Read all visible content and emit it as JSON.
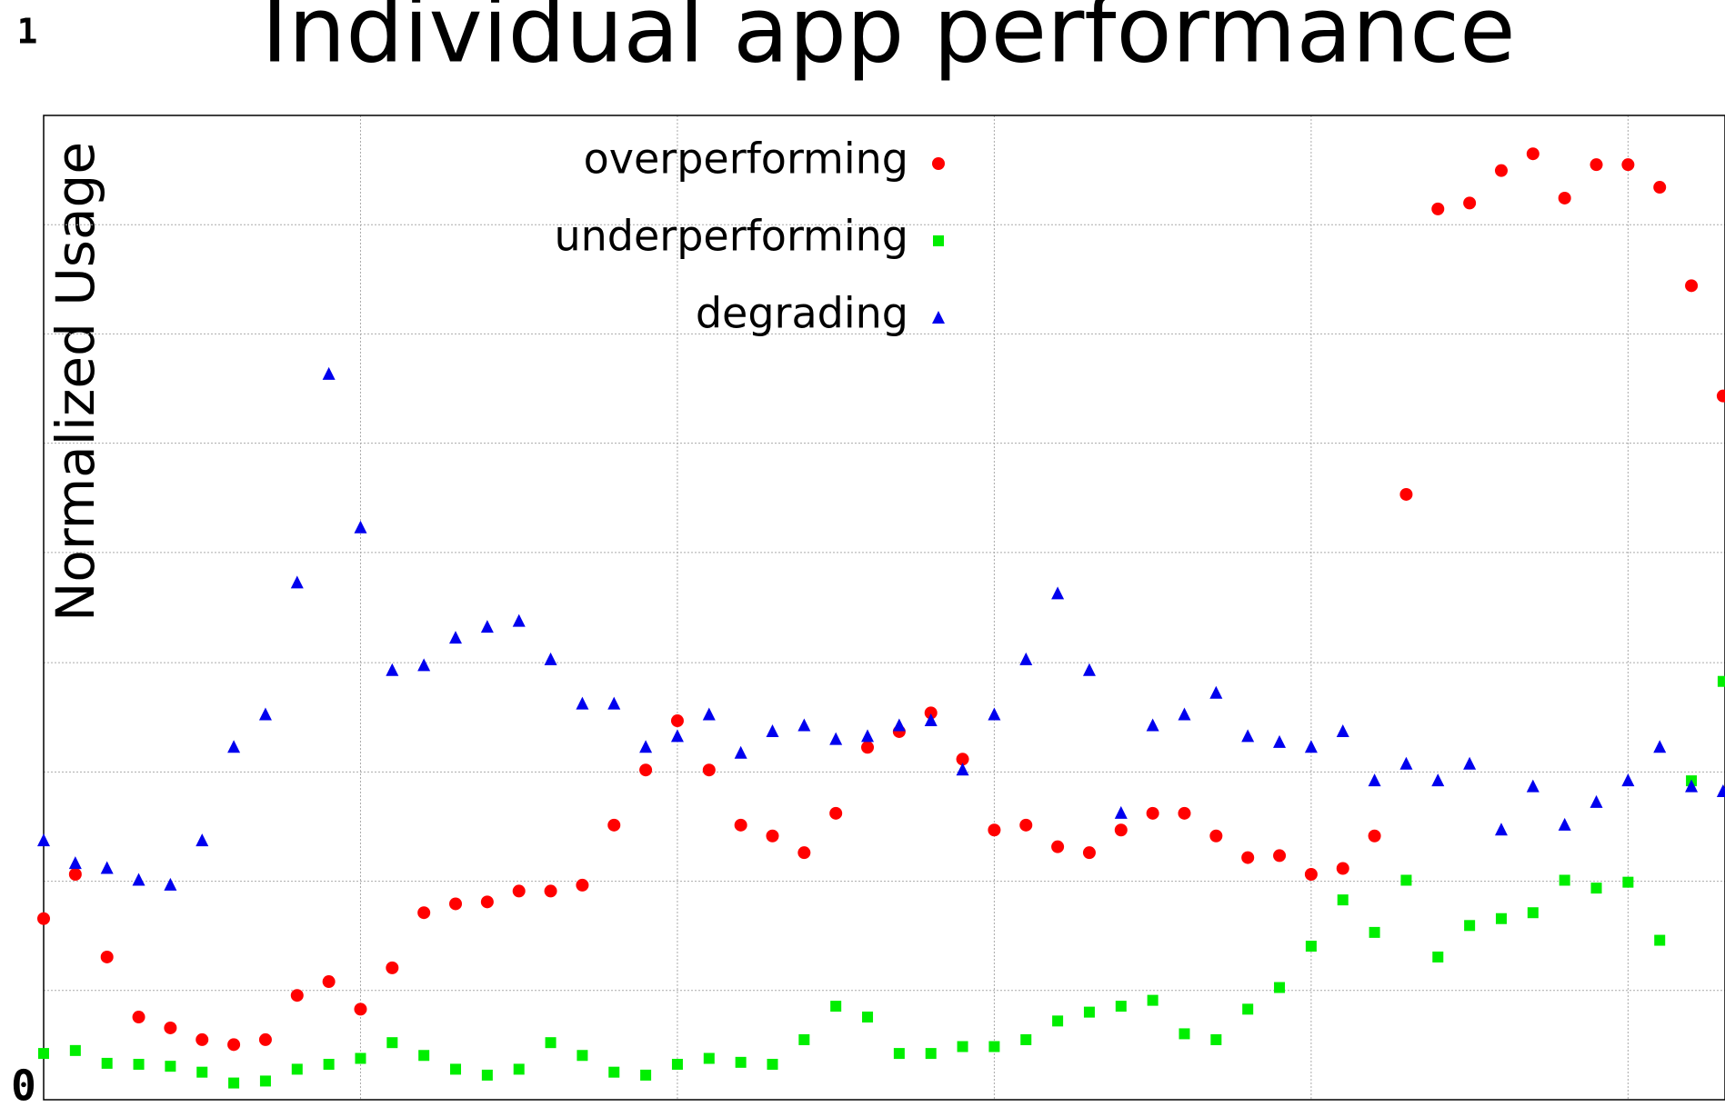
{
  "chart_data": {
    "type": "scatter",
    "title": "Individual app performance",
    "ylabel": "Normalized Usage",
    "xlim": [
      0,
      530.6
    ],
    "xticks": [
      {
        "value": 100,
        "label": null
      },
      {
        "value": 200,
        "label": null
      },
      {
        "value": 300,
        "label": null
      },
      {
        "value": 400,
        "label": null
      },
      {
        "value": 500,
        "label": null
      }
    ],
    "ylim": [
      0,
      1
    ],
    "yticks": [
      0,
      {
        "value": 0.111,
        "label": null
      },
      {
        "value": 0.222,
        "label": null
      },
      {
        "value": 0.333,
        "label": null
      },
      {
        "value": 0.444,
        "label": null
      },
      {
        "value": 0.556,
        "label": null
      },
      {
        "value": 0.667,
        "label": null
      },
      {
        "value": 0.778,
        "label": null
      },
      {
        "value": 0.889,
        "label": null
      },
      1
    ],
    "grid": true,
    "legend": "top-center",
    "x": [
      0,
      10,
      20,
      30,
      40,
      50,
      60,
      70,
      80,
      90,
      100,
      110,
      120,
      130,
      140,
      150,
      160,
      170,
      180,
      190,
      200,
      210,
      220,
      230,
      240,
      250,
      260,
      270,
      280,
      290,
      300,
      310,
      320,
      330,
      340,
      350,
      360,
      370,
      380,
      390,
      400,
      410,
      420,
      430,
      440,
      450,
      460,
      470,
      480,
      490,
      500,
      510,
      520,
      530
    ],
    "series": [
      {
        "name": "overperforming",
        "color": "#ff0000",
        "marker": "circle",
        "values": [
          0.184,
          0.229,
          0.145,
          0.084,
          0.073,
          0.061,
          0.056,
          0.061,
          0.106,
          0.12,
          0.092,
          0.134,
          0.19,
          0.199,
          0.201,
          0.212,
          0.212,
          0.218,
          0.279,
          0.335,
          0.385,
          0.335,
          0.279,
          0.268,
          0.251,
          0.291,
          0.358,
          0.374,
          0.393,
          0.346,
          0.274,
          0.279,
          0.257,
          0.251,
          0.274,
          0.291,
          0.291,
          0.268,
          0.246,
          0.248,
          0.229,
          0.235,
          0.268,
          0.615,
          0.905,
          0.911,
          0.944,
          0.961,
          0.916,
          0.95,
          0.95,
          0.927,
          0.827,
          0.715
        ]
      },
      {
        "name": "underperforming",
        "color": "#00ee00",
        "marker": "square",
        "values": [
          0.047,
          0.05,
          0.037,
          0.036,
          0.034,
          0.028,
          0.017,
          0.019,
          0.031,
          0.036,
          0.042,
          0.058,
          0.045,
          0.031,
          0.025,
          0.031,
          0.058,
          0.045,
          0.028,
          0.025,
          0.036,
          0.042,
          0.038,
          0.036,
          0.061,
          0.095,
          0.084,
          0.047,
          0.047,
          0.054,
          0.054,
          0.061,
          0.08,
          0.089,
          0.095,
          0.101,
          0.067,
          0.061,
          0.092,
          0.114,
          0.156,
          0.203,
          0.17,
          0.223,
          0.145,
          0.177,
          0.184,
          0.19,
          0.223,
          0.215,
          0.221,
          0.162,
          0.324,
          0.425
        ]
      },
      {
        "name": "degrading",
        "color": "#0000ee",
        "marker": "triangle",
        "values": [
          0.263,
          0.24,
          0.235,
          0.223,
          0.218,
          0.263,
          0.358,
          0.391,
          0.525,
          0.737,
          0.581,
          0.436,
          0.441,
          0.469,
          0.48,
          0.486,
          0.447,
          0.402,
          0.402,
          0.358,
          0.369,
          0.391,
          0.352,
          0.374,
          0.38,
          0.366,
          0.369,
          0.38,
          0.385,
          0.335,
          0.391,
          0.447,
          0.514,
          0.436,
          0.291,
          0.38,
          0.391,
          0.413,
          0.369,
          0.363,
          0.358,
          0.374,
          0.324,
          0.341,
          0.324,
          0.341,
          0.274,
          0.318,
          0.279,
          0.302,
          0.324,
          0.358,
          0.318,
          0.313
        ]
      }
    ]
  }
}
